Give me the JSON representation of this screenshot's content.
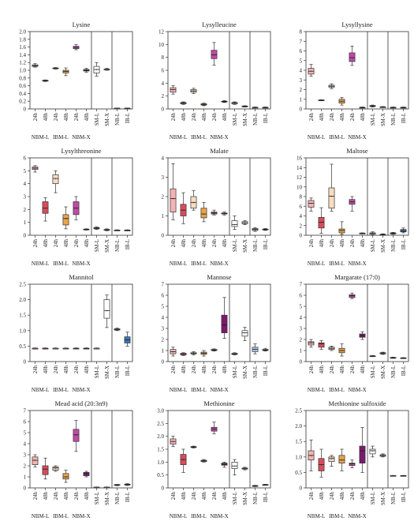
{
  "figure": {
    "group_labels": [
      "NBM-L",
      "IBM-L",
      "NBM-X"
    ],
    "category_colors": [
      "#f4b3b3",
      "#d94c5c",
      "#f8dcc0",
      "#e9a44a",
      "#c24aa6",
      "#7a1a6e",
      "#ffffff",
      "#ffffff",
      "#aac7e6",
      "#3a78b8"
    ]
  },
  "chart_data": [
    {
      "type": "box",
      "title": "Lysine",
      "categories": [
        "24h",
        "48h",
        "24h",
        "48h",
        "24h",
        "48h",
        "SM-L",
        "SM-X",
        "NB-L",
        "IB-L"
      ],
      "ylim": [
        0,
        2.0
      ],
      "yticks": [
        0,
        0.2,
        0.4,
        0.6,
        0.8,
        1.0,
        1.2,
        1.4,
        1.6,
        1.8,
        2.0
      ],
      "ytick_labels": [
        "0",
        "0.2",
        "0.4",
        "0.6",
        "0.8",
        "1.0",
        "1.2",
        "1.4",
        "1.6",
        "1.8",
        "2.0"
      ],
      "boxes": [
        [
          1.08,
          1.1,
          1.12,
          1.14,
          1.17
        ],
        [
          0.71,
          0.72,
          0.73,
          0.74,
          0.75
        ],
        [
          1.03,
          1.04,
          1.05,
          1.06,
          1.07
        ],
        [
          0.86,
          0.93,
          0.97,
          1.0,
          1.06
        ],
        [
          1.53,
          1.56,
          1.59,
          1.62,
          1.66
        ],
        [
          0.95,
          0.98,
          1.0,
          1.02,
          1.05
        ],
        [
          0.85,
          0.93,
          1.02,
          1.1,
          1.2
        ],
        [
          1.0,
          1.01,
          1.02,
          1.03,
          1.05
        ],
        [
          0.01,
          0.01,
          0.02,
          0.02,
          0.02
        ],
        [
          0.01,
          0.01,
          0.02,
          0.02,
          0.02
        ]
      ]
    },
    {
      "type": "box",
      "title": "Lysylleucine",
      "categories": [
        "24h",
        "48h",
        "24h",
        "48h",
        "24h",
        "48h",
        "SM-L",
        "SM-X",
        "NB-L",
        "IB-L"
      ],
      "ylim": [
        0,
        12
      ],
      "yticks": [
        0,
        2,
        4,
        6,
        8,
        10,
        12
      ],
      "ytick_labels": [
        "0",
        "2",
        "4",
        "6",
        "8",
        "10",
        "12"
      ],
      "boxes": [
        [
          2.3,
          2.6,
          3.0,
          3.3,
          3.6
        ],
        [
          0.7,
          0.8,
          0.9,
          1.0,
          1.1
        ],
        [
          2.4,
          2.6,
          2.8,
          3.0,
          3.2
        ],
        [
          0.5,
          0.6,
          0.7,
          0.8,
          0.9
        ],
        [
          6.8,
          7.8,
          8.4,
          9.1,
          10.3
        ],
        [
          1.0,
          1.1,
          1.15,
          1.2,
          1.3
        ],
        [
          0.7,
          0.8,
          0.9,
          1.0,
          1.1
        ],
        [
          0.3,
          0.35,
          0.4,
          0.45,
          0.5
        ],
        [
          0.2,
          0.2,
          0.25,
          0.25,
          0.3
        ],
        [
          0.2,
          0.2,
          0.25,
          0.25,
          0.3
        ]
      ]
    },
    {
      "type": "box",
      "title": "Lysyllysine",
      "categories": [
        "24h",
        "48h",
        "24h",
        "48h",
        "24h",
        "48h",
        "SM-L",
        "SM-X",
        "NB-L",
        "IB-L"
      ],
      "ylim": [
        0,
        8
      ],
      "yticks": [
        0,
        1,
        2,
        3,
        4,
        5,
        6,
        7,
        8
      ],
      "ytick_labels": [
        "0",
        "1",
        "2",
        "3",
        "4",
        "5",
        "6",
        "7",
        "8"
      ],
      "boxes": [
        [
          3.4,
          3.6,
          3.9,
          4.2,
          4.6
        ],
        [
          0.85,
          0.88,
          0.9,
          0.93,
          0.95
        ],
        [
          2.1,
          2.25,
          2.35,
          2.45,
          2.6
        ],
        [
          0.4,
          0.6,
          0.8,
          1.0,
          1.2
        ],
        [
          4.5,
          4.9,
          5.3,
          5.8,
          6.5
        ],
        [
          0.1,
          0.12,
          0.15,
          0.17,
          0.2
        ],
        [
          0.2,
          0.25,
          0.3,
          0.35,
          0.4
        ],
        [
          0.15,
          0.18,
          0.2,
          0.22,
          0.25
        ],
        [
          0.1,
          0.12,
          0.15,
          0.17,
          0.2
        ],
        [
          0.1,
          0.12,
          0.15,
          0.17,
          0.2
        ]
      ]
    },
    {
      "type": "box",
      "title": "Lysylthreonine",
      "categories": [
        "24h",
        "48h",
        "24h",
        "48h",
        "24h",
        "48h",
        "SM-L",
        "SM-X",
        "NB-L",
        "IB-L"
      ],
      "ylim": [
        0,
        6
      ],
      "yticks": [
        0,
        1,
        2,
        3,
        4,
        5,
        6
      ],
      "ytick_labels": [
        "0",
        "1",
        "2",
        "3",
        "4",
        "5",
        "6"
      ],
      "boxes": [
        [
          4.9,
          5.1,
          5.2,
          5.3,
          5.4
        ],
        [
          1.1,
          1.7,
          2.1,
          2.6,
          2.9
        ],
        [
          3.3,
          4.0,
          4.4,
          4.7,
          5.0
        ],
        [
          0.5,
          0.8,
          1.3,
          1.6,
          2.2
        ],
        [
          1.2,
          1.6,
          2.1,
          2.6,
          3.0
        ],
        [
          0.4,
          0.42,
          0.45,
          0.48,
          0.5
        ],
        [
          0.45,
          0.5,
          0.55,
          0.6,
          0.65
        ],
        [
          0.35,
          0.4,
          0.42,
          0.45,
          0.5
        ],
        [
          0.38,
          0.4,
          0.4,
          0.4,
          0.42
        ],
        [
          0.38,
          0.4,
          0.4,
          0.4,
          0.42
        ]
      ]
    },
    {
      "type": "box",
      "title": "Malate",
      "categories": [
        "24h",
        "48h",
        "24h",
        "48h",
        "24h",
        "48h",
        "SM-L",
        "SM-X",
        "NB-L",
        "IB-L"
      ],
      "ylim": [
        0,
        4
      ],
      "yticks": [
        0,
        1,
        2,
        3,
        4
      ],
      "ytick_labels": [
        "0",
        "1",
        "2",
        "3",
        "4"
      ],
      "boxes": [
        [
          0.8,
          1.2,
          1.9,
          2.4,
          3.7
        ],
        [
          0.6,
          1.0,
          1.3,
          1.6,
          2.2
        ],
        [
          1.3,
          1.4,
          1.7,
          2.0,
          2.3
        ],
        [
          0.7,
          0.9,
          1.1,
          1.4,
          1.7
        ],
        [
          1.05,
          1.1,
          1.15,
          1.2,
          1.3
        ],
        [
          1.05,
          1.1,
          1.12,
          1.15,
          1.2
        ],
        [
          0.3,
          0.45,
          0.55,
          0.75,
          1.0
        ],
        [
          0.55,
          0.6,
          0.65,
          0.7,
          0.75
        ],
        [
          0.2,
          0.25,
          0.3,
          0.35,
          0.4
        ],
        [
          0.25,
          0.28,
          0.3,
          0.32,
          0.35
        ]
      ]
    },
    {
      "type": "box",
      "title": "Maltose",
      "categories": [
        "24h",
        "48h",
        "24h",
        "48h",
        "24h",
        "48h",
        "SM-L",
        "SM-X",
        "NB-L",
        "IB-L"
      ],
      "ylim": [
        0,
        16
      ],
      "yticks": [
        0,
        2,
        4,
        6,
        8,
        10,
        12,
        14,
        16
      ],
      "ytick_labels": [
        "0",
        "2",
        "4",
        "6",
        "8",
        "10",
        "12",
        "14",
        "16"
      ],
      "boxes": [
        [
          5.0,
          5.8,
          6.6,
          7.2,
          7.7
        ],
        [
          0.4,
          1.5,
          2.7,
          3.7,
          5.7
        ],
        [
          5.0,
          5.6,
          8.1,
          9.8,
          14.7
        ],
        [
          0.2,
          0.5,
          1.0,
          1.3,
          2.8
        ],
        [
          5.0,
          6.4,
          6.9,
          7.4,
          8.0
        ],
        [
          0.3,
          0.35,
          0.4,
          0.45,
          0.5
        ],
        [
          0.1,
          0.2,
          0.4,
          0.5,
          0.7
        ],
        [
          0.1,
          0.1,
          0.15,
          0.2,
          0.3
        ],
        [
          0.2,
          0.3,
          0.4,
          0.5,
          0.6
        ],
        [
          0.5,
          0.7,
          0.9,
          1.2,
          1.5
        ]
      ]
    },
    {
      "type": "box",
      "title": "Mannitol",
      "categories": [
        "24h",
        "48h",
        "24h",
        "48h",
        "24h",
        "48h",
        "SM-L",
        "SM-X",
        "NB-L",
        "IB-L"
      ],
      "ylim": [
        0,
        2.5
      ],
      "yticks": [
        0,
        0.5,
        1.0,
        1.5,
        2.0,
        2.5
      ],
      "ytick_labels": [
        "0",
        "0.5",
        "1.0",
        "1.5",
        "2.0",
        "2.5"
      ],
      "boxes": [
        [
          0.42,
          0.43,
          0.43,
          0.43,
          0.44
        ],
        [
          0.42,
          0.43,
          0.43,
          0.43,
          0.44
        ],
        [
          0.42,
          0.43,
          0.43,
          0.43,
          0.44
        ],
        [
          0.42,
          0.43,
          0.43,
          0.43,
          0.44
        ],
        [
          0.42,
          0.43,
          0.43,
          0.43,
          0.44
        ],
        [
          0.42,
          0.43,
          0.43,
          0.43,
          0.44
        ],
        [
          0.42,
          0.43,
          0.43,
          0.43,
          0.44
        ],
        [
          1.1,
          1.4,
          1.65,
          2.0,
          2.15
        ],
        [
          1.0,
          1.02,
          1.04,
          1.06,
          1.08
        ],
        [
          0.5,
          0.6,
          0.7,
          0.8,
          0.95
        ]
      ]
    },
    {
      "type": "box",
      "title": "Mannose",
      "categories": [
        "24h",
        "48h",
        "24h",
        "48h",
        "24h",
        "48h",
        "SM-L",
        "SM-X",
        "NB-L",
        "IB-L"
      ],
      "ylim": [
        0,
        7
      ],
      "yticks": [
        0,
        1,
        2,
        3,
        4,
        5,
        6,
        7
      ],
      "ytick_labels": [
        "0",
        "1",
        "2",
        "3",
        "4",
        "5",
        "6",
        "7"
      ],
      "boxes": [
        [
          0.5,
          0.7,
          0.9,
          1.1,
          1.3
        ],
        [
          0.55,
          0.6,
          0.7,
          0.75,
          0.8
        ],
        [
          0.6,
          0.7,
          0.75,
          0.8,
          0.9
        ],
        [
          0.5,
          0.65,
          0.75,
          0.85,
          1.0
        ],
        [
          0.95,
          1.0,
          1.05,
          1.1,
          1.15
        ],
        [
          2.1,
          2.6,
          3.3,
          4.2,
          5.8
        ],
        [
          0.6,
          0.65,
          0.7,
          0.75,
          0.8
        ],
        [
          1.9,
          2.3,
          2.6,
          2.8,
          3.1
        ],
        [
          0.7,
          0.9,
          1.1,
          1.3,
          1.6
        ],
        [
          0.95,
          1.0,
          1.05,
          1.1,
          1.2
        ]
      ]
    },
    {
      "type": "box",
      "title": "Margarate (17:0)",
      "categories": [
        "24h",
        "48h",
        "24h",
        "48h",
        "24h",
        "48h",
        "SM-L",
        "SM-X",
        "NB-L",
        "IB-L"
      ],
      "ylim": [
        0,
        7
      ],
      "yticks": [
        0,
        1,
        2,
        3,
        4,
        5,
        6,
        7
      ],
      "ytick_labels": [
        "0",
        "1",
        "2",
        "3",
        "4",
        "5",
        "6",
        "7"
      ],
      "boxes": [
        [
          1.3,
          1.5,
          1.7,
          1.8,
          2.0
        ],
        [
          1.1,
          1.3,
          1.6,
          1.7,
          1.9
        ],
        [
          1.0,
          1.1,
          1.2,
          1.3,
          1.4
        ],
        [
          0.5,
          0.8,
          1.0,
          1.2,
          1.6
        ],
        [
          5.7,
          5.8,
          5.95,
          6.05,
          6.2
        ],
        [
          2.0,
          2.2,
          2.35,
          2.5,
          2.7
        ],
        [
          0.45,
          0.48,
          0.5,
          0.52,
          0.55
        ],
        [
          0.65,
          0.7,
          0.75,
          0.8,
          0.85
        ],
        [
          0.3,
          0.33,
          0.35,
          0.37,
          0.4
        ],
        [
          0.28,
          0.3,
          0.32,
          0.34,
          0.36
        ]
      ]
    },
    {
      "type": "box",
      "title": "Mead acid (20:3n9)",
      "categories": [
        "24h",
        "48h",
        "24h",
        "48h",
        "24h",
        "48h",
        "SM-L",
        "SM-X",
        "NB-L",
        "IB-L"
      ],
      "ylim": [
        0,
        7
      ],
      "yticks": [
        0,
        1,
        2,
        3,
        4,
        5,
        6,
        7
      ],
      "ytick_labels": [
        "0",
        "1",
        "2",
        "3",
        "4",
        "5",
        "6",
        "7"
      ],
      "boxes": [
        [
          1.9,
          2.1,
          2.5,
          2.8,
          3.0
        ],
        [
          0.8,
          1.2,
          1.7,
          2.0,
          2.7
        ],
        [
          1.5,
          1.6,
          1.8,
          1.9,
          2.0
        ],
        [
          0.5,
          0.8,
          1.0,
          1.3,
          1.6
        ],
        [
          3.3,
          4.2,
          4.8,
          5.3,
          6.1
        ],
        [
          1.0,
          1.1,
          1.3,
          1.4,
          1.5
        ],
        [
          0.04,
          0.05,
          0.06,
          0.07,
          0.08
        ],
        [
          0.04,
          0.05,
          0.06,
          0.07,
          0.08
        ],
        [
          0.2,
          0.25,
          0.28,
          0.3,
          0.32
        ],
        [
          0.22,
          0.26,
          0.3,
          0.34,
          0.38
        ]
      ]
    },
    {
      "type": "box",
      "title": "Methionine",
      "categories": [
        "24h",
        "48h",
        "24h",
        "48h",
        "24h",
        "48h",
        "SM-L",
        "SM-X",
        "NB-L",
        "IB-L"
      ],
      "ylim": [
        0,
        3.0
      ],
      "yticks": [
        0,
        0.5,
        1.0,
        1.5,
        2.0,
        2.5,
        3.0
      ],
      "ytick_labels": [
        "0",
        "0.5",
        "1.0",
        "1.5",
        "2.0",
        "2.5",
        "3.0"
      ],
      "boxes": [
        [
          1.6,
          1.7,
          1.8,
          1.9,
          2.0
        ],
        [
          0.6,
          0.9,
          1.1,
          1.3,
          1.5
        ],
        [
          1.55,
          1.57,
          1.58,
          1.6,
          1.62
        ],
        [
          1.0,
          1.02,
          1.05,
          1.07,
          1.1
        ],
        [
          2.1,
          2.2,
          2.28,
          2.35,
          2.55
        ],
        [
          0.8,
          0.88,
          0.92,
          0.96,
          1.0
        ],
        [
          0.5,
          0.75,
          0.85,
          1.0,
          1.1
        ],
        [
          0.7,
          0.73,
          0.75,
          0.77,
          0.8
        ],
        [
          0.05,
          0.07,
          0.08,
          0.09,
          0.1
        ],
        [
          0.1,
          0.11,
          0.12,
          0.13,
          0.14
        ]
      ]
    },
    {
      "type": "box",
      "title": "Methionine sulfoxide",
      "categories": [
        "24h",
        "48h",
        "24h",
        "48h",
        "24h",
        "48h",
        "SM-L",
        "SM-X",
        "NB-L",
        "IB-L"
      ],
      "ylim": [
        0,
        2.5
      ],
      "yticks": [
        0,
        0.5,
        1.0,
        1.5,
        2.0,
        2.5
      ],
      "ytick_labels": [
        "0",
        "0.5",
        "1.0",
        "1.5",
        "2.0",
        "2.5"
      ],
      "boxes": [
        [
          0.55,
          0.9,
          1.05,
          1.2,
          1.55
        ],
        [
          0.35,
          0.55,
          0.75,
          0.95,
          1.25
        ],
        [
          0.7,
          0.85,
          0.95,
          1.0,
          1.05
        ],
        [
          0.55,
          0.8,
          0.9,
          1.05,
          1.25
        ],
        [
          0.65,
          0.72,
          0.78,
          0.8,
          0.9
        ],
        [
          0.5,
          0.8,
          1.2,
          1.35,
          1.95
        ],
        [
          1.0,
          1.1,
          1.2,
          1.25,
          1.35
        ],
        [
          1.0,
          1.02,
          1.05,
          1.07,
          1.1
        ],
        [
          0.4,
          0.4,
          0.4,
          0.4,
          0.4
        ],
        [
          0.4,
          0.4,
          0.4,
          0.4,
          0.4
        ]
      ]
    }
  ]
}
